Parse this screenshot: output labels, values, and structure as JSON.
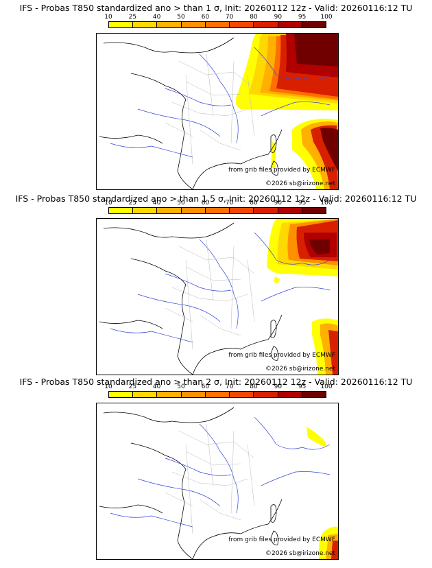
{
  "legend": {
    "levels": [
      "10",
      "25",
      "40",
      "50",
      "60",
      "70",
      "80",
      "90",
      "95",
      "100"
    ],
    "colors": [
      "#ffff00",
      "#ffd800",
      "#ffb000",
      "#ff9000",
      "#ff7000",
      "#f04800",
      "#d82000",
      "#b00000",
      "#700000"
    ]
  },
  "panels": [
    {
      "title": "IFS - Probas T850  standardized ano > than 1 σ, Init: 20260112 12z - Valid: 20260116:12 TU",
      "credit_source": "from grib files provided by ECMWF",
      "credit_copyright": "©2026 sb@irizone.net"
    },
    {
      "title": "IFS - Probas T850  standardized ano > than 1.5 σ, Init: 20260112 12z - Valid: 20260116:12 TU",
      "credit_source": "from grib files provided by ECMWF",
      "credit_copyright": "©2026 sb@irizone.net"
    },
    {
      "title": "IFS - Probas T850  standardized ano > than 2 σ, Init: 20260112 12z - Valid: 20260116:12 TU",
      "credit_source": "from grib files provided by ECMWF",
      "credit_copyright": "©2026 sb@irizone.net"
    }
  ]
}
